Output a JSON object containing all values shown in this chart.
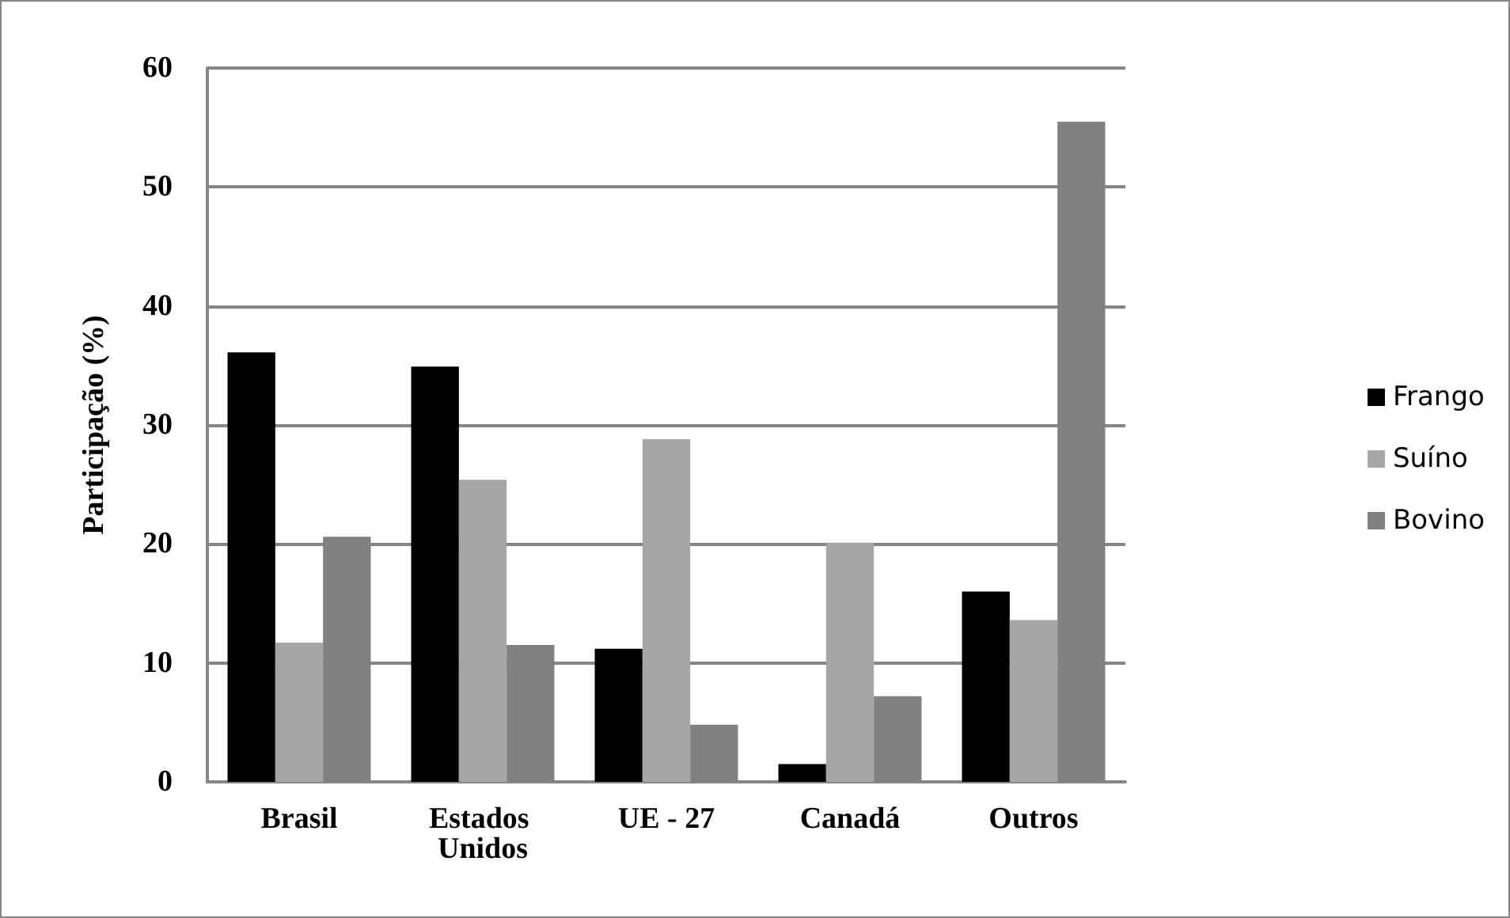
{
  "chart_data": {
    "type": "bar",
    "ylabel": "Participação (%)",
    "categories": [
      "Brasil",
      "Estados Unidos",
      "UE - 27",
      "Canadá",
      "Outros"
    ],
    "series": [
      {
        "name": "Frango",
        "color": "#000000",
        "values": [
          36.1,
          34.9,
          11.2,
          1.5,
          16.0
        ]
      },
      {
        "name": "Suíno",
        "color": "#a6a6a6",
        "values": [
          11.7,
          25.4,
          28.8,
          20.1,
          13.6
        ]
      },
      {
        "name": "Bovino",
        "color": "#808080",
        "values": [
          20.6,
          11.5,
          4.8,
          7.2,
          55.5
        ]
      }
    ],
    "ylim": [
      0,
      60
    ],
    "yticks": [
      0,
      10,
      20,
      30,
      40,
      50,
      60
    ],
    "grid": "y",
    "legend": "right"
  }
}
